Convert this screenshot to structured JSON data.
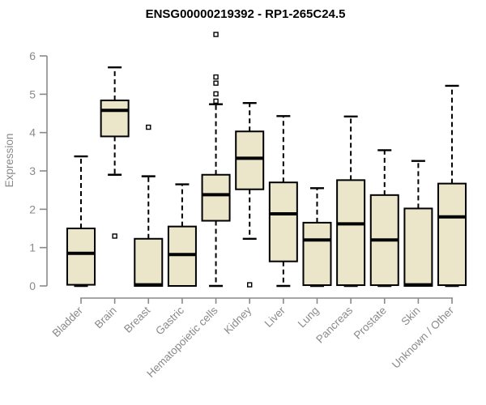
{
  "chart_data": {
    "type": "boxplot",
    "title": "ENSG00000219392 - RP1-265C24.5",
    "xlabel": "",
    "ylabel": "Expression",
    "ylim": [
      0,
      6.6
    ],
    "yticks": [
      0,
      1,
      2,
      3,
      4,
      5,
      6
    ],
    "grid": false,
    "legend": false,
    "categories": [
      "Bladder",
      "Brain",
      "Breast",
      "Gastric",
      "Hematopoietic cells",
      "Kidney",
      "Liver",
      "Lung",
      "Pancreas",
      "Prostate",
      "Skin",
      "Unknown / Other"
    ],
    "boxes": [
      {
        "category": "Bladder",
        "whisker_low": 0,
        "q1": 0.03,
        "median": 0.85,
        "q3": 1.5,
        "whisker_high": 3.38,
        "outliers": []
      },
      {
        "category": "Brain",
        "whisker_low": 2.9,
        "q1": 3.9,
        "median": 4.58,
        "q3": 4.84,
        "whisker_high": 5.7,
        "outliers": [
          1.3
        ]
      },
      {
        "category": "Breast",
        "whisker_low": 0,
        "q1": 0,
        "median": 0.03,
        "q3": 1.23,
        "whisker_high": 2.86,
        "outliers": [
          4.14
        ]
      },
      {
        "category": "Gastric",
        "whisker_low": 0,
        "q1": 0,
        "median": 0.82,
        "q3": 1.55,
        "whisker_high": 2.65,
        "outliers": []
      },
      {
        "category": "Hematopoietic cells",
        "whisker_low": 0,
        "q1": 1.7,
        "median": 2.38,
        "q3": 2.9,
        "whisker_high": 4.74,
        "outliers": [
          4.82,
          5.01,
          5.29,
          5.45,
          6.56
        ]
      },
      {
        "category": "Kidney",
        "whisker_low": 1.23,
        "q1": 2.52,
        "median": 3.33,
        "q3": 4.03,
        "whisker_high": 4.77,
        "outliers": [
          0.03
        ]
      },
      {
        "category": "Liver",
        "whisker_low": 0,
        "q1": 0.64,
        "median": 1.88,
        "q3": 2.7,
        "whisker_high": 4.43,
        "outliers": []
      },
      {
        "category": "Lung",
        "whisker_low": 0,
        "q1": 0.02,
        "median": 1.2,
        "q3": 1.65,
        "whisker_high": 2.55,
        "outliers": []
      },
      {
        "category": "Pancreas",
        "whisker_low": 0,
        "q1": 0.02,
        "median": 1.62,
        "q3": 2.76,
        "whisker_high": 4.42,
        "outliers": []
      },
      {
        "category": "Prostate",
        "whisker_low": 0,
        "q1": 0.02,
        "median": 1.2,
        "q3": 2.37,
        "whisker_high": 3.54,
        "outliers": []
      },
      {
        "category": "Skin",
        "whisker_low": 0,
        "q1": 0,
        "median": 0.03,
        "q3": 2.02,
        "whisker_high": 3.26,
        "outliers": []
      },
      {
        "category": "Unknown / Other",
        "whisker_low": 0,
        "q1": 0.02,
        "median": 1.8,
        "q3": 2.67,
        "whisker_high": 5.22,
        "outliers": []
      }
    ],
    "colors": {
      "box_fill": "#EBE5C9",
      "box_border": "#000000",
      "median": "#000000",
      "whisker": "#000000",
      "outlier_border": "#000000",
      "outlier_fill": "#ffffff",
      "axis": "#8a8a8a",
      "title": "#000000",
      "background": "#ffffff"
    }
  }
}
